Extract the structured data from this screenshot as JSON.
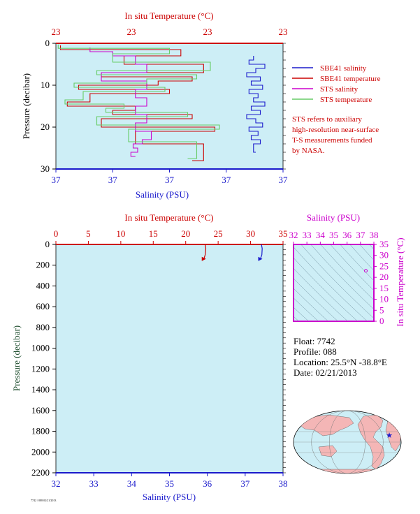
{
  "chart_data": [
    {
      "type": "line",
      "x_top_label": "In situ Temperature (°C)",
      "x_top_ticks": [
        "23",
        "23",
        "23",
        "23"
      ],
      "x_bottom_label": "Salinity (PSU)",
      "x_bottom_ticks": [
        "37",
        "37",
        "37",
        "37",
        "37"
      ],
      "ylabel": "Pressure (decibar)",
      "y_ticks": [
        "0",
        "10",
        "20",
        "30"
      ],
      "ylim": [
        0,
        30
      ],
      "legend": [
        "SBE41 salinity",
        "SBE41 temperature",
        "STS salinity",
        "STS temperature"
      ],
      "note": [
        "STS refers to auxiliary",
        "high-resolution near-surface",
        "T-S measurements funded",
        "by NASA."
      ],
      "series": [
        {
          "name": "SBE41 salinity",
          "color": "#1a1acc",
          "x_frac": [
            0.87,
            0.85,
            0.92,
            0.88,
            0.84,
            0.9,
            0.86,
            0.91,
            0.85,
            0.89,
            0.87,
            0.92,
            0.86,
            0.9,
            0.84,
            0.88,
            0.91,
            0.85,
            0.89,
            0.86,
            0.9,
            0.87,
            0.88
          ],
          "y": [
            3,
            4,
            5,
            6,
            7,
            8,
            9,
            10,
            11,
            12,
            13,
            14,
            15,
            16,
            17,
            18,
            19,
            20,
            21,
            22,
            23,
            24,
            26
          ]
        },
        {
          "name": "SBE41 temperature",
          "color": "#cc0000",
          "x_frac": [
            0.02,
            0.55,
            0.3,
            0.65,
            0.2,
            0.6,
            0.45,
            0.1,
            0.5,
            0.15,
            0.05,
            0.35,
            0.25,
            0.6,
            0.2,
            0.7,
            0.35,
            0.65,
            0.6
          ],
          "y": [
            0.5,
            1.5,
            3,
            5,
            7,
            8,
            9,
            10,
            11,
            12,
            14,
            15,
            16,
            17,
            18,
            20,
            21,
            24,
            28
          ]
        },
        {
          "name": "STS salinity",
          "color": "#cc00cc",
          "x_frac": [
            0.15,
            0.25,
            0.35,
            0.4,
            0.2,
            0.4,
            0.35,
            0.4,
            0.35,
            0.4,
            0.35,
            0.42,
            0.38,
            0.34,
            0.36,
            0.33,
            0.35
          ],
          "y": [
            1,
            2,
            3,
            5,
            7,
            9,
            11,
            13,
            15,
            17,
            19,
            21,
            23,
            24,
            25,
            26,
            27
          ]
        },
        {
          "name": "STS temperature",
          "color": "#66cc66",
          "x_frac": [
            0.01,
            0.5,
            0.25,
            0.68,
            0.18,
            0.62,
            0.4,
            0.08,
            0.48,
            0.12,
            0.04,
            0.3,
            0.22,
            0.58,
            0.18,
            0.72,
            0.32,
            0.62,
            0.58
          ],
          "y": [
            0.3,
            1.2,
            2.5,
            4.5,
            6.5,
            7.5,
            8.5,
            9.5,
            10.5,
            11.5,
            13.5,
            14.5,
            15.5,
            16.5,
            17.5,
            19.5,
            20.5,
            23.5,
            27.5
          ]
        }
      ]
    },
    {
      "type": "line",
      "x_top_label": "In situ Temperature (°C)",
      "x_top_ticks": [
        "0",
        "5",
        "10",
        "15",
        "20",
        "25",
        "30",
        "35"
      ],
      "xlim_top": [
        0,
        35
      ],
      "x_bottom_label": "Salinity (PSU)",
      "x_bottom_ticks": [
        "32",
        "33",
        "34",
        "35",
        "36",
        "37",
        "38"
      ],
      "xlim_bottom": [
        32,
        38
      ],
      "ylabel": "Pressure (decibar)",
      "y_ticks": [
        "0",
        "200",
        "400",
        "600",
        "800",
        "1000",
        "1200",
        "1400",
        "1600",
        "1800",
        "2000",
        "2200"
      ],
      "ylim": [
        0,
        2200
      ],
      "series": [
        {
          "name": "temperature",
          "color": "#cc0000",
          "x": [
            23.0,
            23.1,
            23.0,
            22.8
          ],
          "y": [
            0,
            40,
            100,
            140
          ]
        },
        {
          "name": "salinity",
          "color": "#1a1acc",
          "x": [
            37.43,
            37.45,
            37.44,
            37.4
          ],
          "y": [
            0,
            40,
            100,
            140
          ]
        }
      ]
    },
    {
      "type": "scatter",
      "x_top_label": "Salinity (PSU)",
      "x_ticks": [
        "32",
        "33",
        "34",
        "35",
        "36",
        "37",
        "38"
      ],
      "xlim": [
        32,
        38
      ],
      "ylabel": "In situ Temperature (°C)",
      "y_ticks": [
        "0",
        "5",
        "10",
        "15",
        "20",
        "25",
        "30",
        "35"
      ],
      "ylim": [
        0,
        35
      ],
      "points": [
        {
          "x": 37.4,
          "y": 23
        }
      ]
    }
  ],
  "float_info": {
    "float": "Float:  7742",
    "profile": "Profile:  088",
    "location": "Location:  25.5°N  -38.8°E",
    "date": "Date:  02/21/2013"
  },
  "footer_text": "7742 / 088  02/21/2013",
  "map": {
    "marker_lat": 25.5,
    "marker_lon": -38.8
  }
}
